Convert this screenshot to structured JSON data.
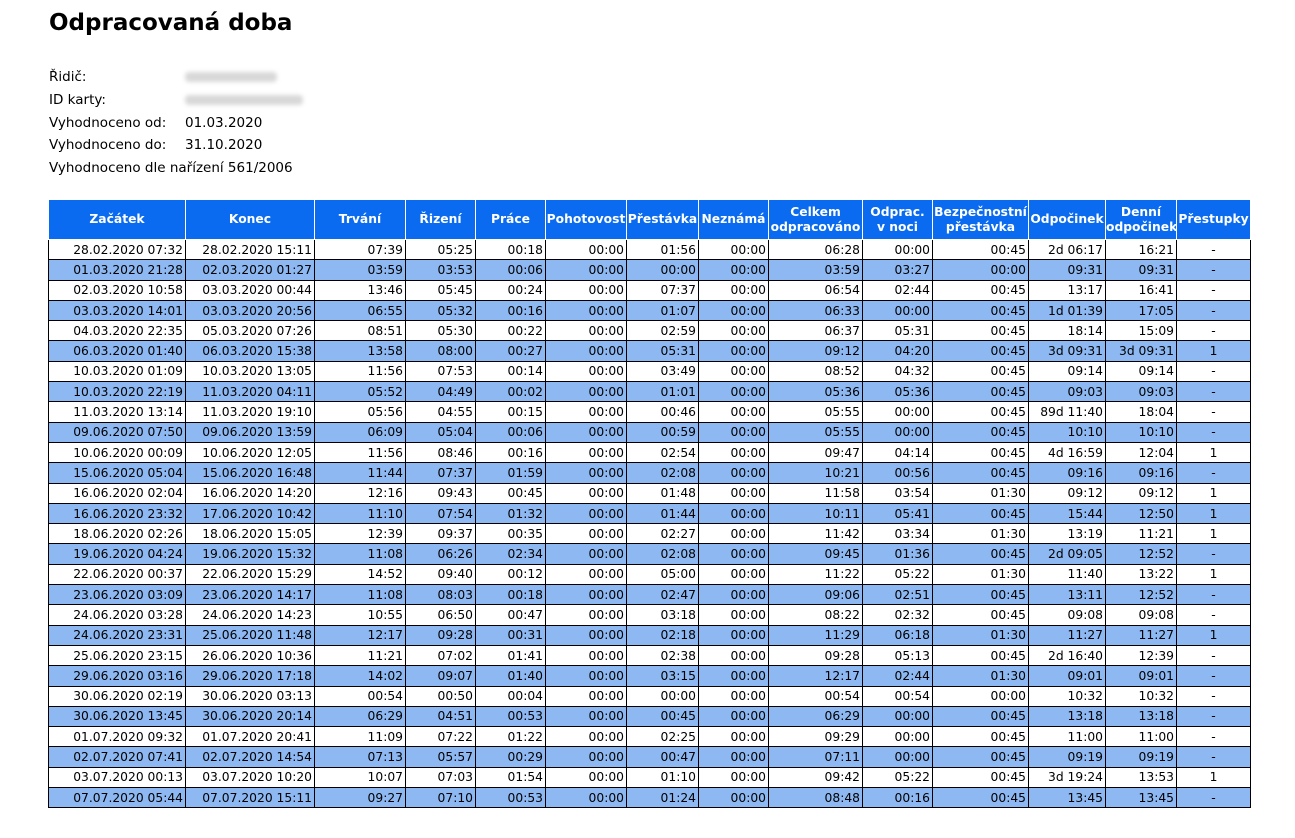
{
  "title": "Odpracovaná doba",
  "meta": [
    {
      "label": "Řidič:",
      "value": ""
    },
    {
      "label": "ID karty:",
      "value": ""
    },
    {
      "label": "Vyhodnoceno od:",
      "value": "01.03.2020"
    },
    {
      "label": "Vyhodnoceno do:",
      "value": "31.10.2020"
    }
  ],
  "regulation": "Vyhodnoceno dle nařízení 561/2006",
  "columns": [
    [
      "Začátek"
    ],
    [
      "Konec"
    ],
    [
      "Trvání"
    ],
    [
      "Řizení"
    ],
    [
      "Práce"
    ],
    [
      "Pohotovost"
    ],
    [
      "Přestávka"
    ],
    [
      "Neznámá"
    ],
    [
      "Celkem",
      "odpracováno"
    ],
    [
      "Odprac.",
      "v noci"
    ],
    [
      "Bezpečnostní",
      "přestávka"
    ],
    [
      "Odpočinek"
    ],
    [
      "Denní",
      "odpočinek"
    ],
    [
      "Přestupky"
    ]
  ],
  "rows": [
    [
      "28.02.2020 07:32",
      "28.02.2020 15:11",
      "07:39",
      "05:25",
      "00:18",
      "00:00",
      "01:56",
      "00:00",
      "06:28",
      "00:00",
      "00:45",
      "2d 06:17",
      "16:21",
      "-"
    ],
    [
      "01.03.2020 21:28",
      "02.03.2020 01:27",
      "03:59",
      "03:53",
      "00:06",
      "00:00",
      "00:00",
      "00:00",
      "03:59",
      "03:27",
      "00:00",
      "09:31",
      "09:31",
      "-"
    ],
    [
      "02.03.2020 10:58",
      "03.03.2020 00:44",
      "13:46",
      "05:45",
      "00:24",
      "00:00",
      "07:37",
      "00:00",
      "06:54",
      "02:44",
      "00:45",
      "13:17",
      "16:41",
      "-"
    ],
    [
      "03.03.2020 14:01",
      "03.03.2020 20:56",
      "06:55",
      "05:32",
      "00:16",
      "00:00",
      "01:07",
      "00:00",
      "06:33",
      "00:00",
      "00:45",
      "1d 01:39",
      "17:05",
      "-"
    ],
    [
      "04.03.2020 22:35",
      "05.03.2020 07:26",
      "08:51",
      "05:30",
      "00:22",
      "00:00",
      "02:59",
      "00:00",
      "06:37",
      "05:31",
      "00:45",
      "18:14",
      "15:09",
      "-"
    ],
    [
      "06.03.2020 01:40",
      "06.03.2020 15:38",
      "13:58",
      "08:00",
      "00:27",
      "00:00",
      "05:31",
      "00:00",
      "09:12",
      "04:20",
      "00:45",
      "3d 09:31",
      "3d 09:31",
      "1"
    ],
    [
      "10.03.2020 01:09",
      "10.03.2020 13:05",
      "11:56",
      "07:53",
      "00:14",
      "00:00",
      "03:49",
      "00:00",
      "08:52",
      "04:32",
      "00:45",
      "09:14",
      "09:14",
      "-"
    ],
    [
      "10.03.2020 22:19",
      "11.03.2020 04:11",
      "05:52",
      "04:49",
      "00:02",
      "00:00",
      "01:01",
      "00:00",
      "05:36",
      "05:36",
      "00:45",
      "09:03",
      "09:03",
      "-"
    ],
    [
      "11.03.2020 13:14",
      "11.03.2020 19:10",
      "05:56",
      "04:55",
      "00:15",
      "00:00",
      "00:46",
      "00:00",
      "05:55",
      "00:00",
      "00:45",
      "89d 11:40",
      "18:04",
      "-"
    ],
    [
      "09.06.2020 07:50",
      "09.06.2020 13:59",
      "06:09",
      "05:04",
      "00:06",
      "00:00",
      "00:59",
      "00:00",
      "05:55",
      "00:00",
      "00:45",
      "10:10",
      "10:10",
      "-"
    ],
    [
      "10.06.2020 00:09",
      "10.06.2020 12:05",
      "11:56",
      "08:46",
      "00:16",
      "00:00",
      "02:54",
      "00:00",
      "09:47",
      "04:14",
      "00:45",
      "4d 16:59",
      "12:04",
      "1"
    ],
    [
      "15.06.2020 05:04",
      "15.06.2020 16:48",
      "11:44",
      "07:37",
      "01:59",
      "00:00",
      "02:08",
      "00:00",
      "10:21",
      "00:56",
      "00:45",
      "09:16",
      "09:16",
      "-"
    ],
    [
      "16.06.2020 02:04",
      "16.06.2020 14:20",
      "12:16",
      "09:43",
      "00:45",
      "00:00",
      "01:48",
      "00:00",
      "11:58",
      "03:54",
      "01:30",
      "09:12",
      "09:12",
      "1"
    ],
    [
      "16.06.2020 23:32",
      "17.06.2020 10:42",
      "11:10",
      "07:54",
      "01:32",
      "00:00",
      "01:44",
      "00:00",
      "10:11",
      "05:41",
      "00:45",
      "15:44",
      "12:50",
      "1"
    ],
    [
      "18.06.2020 02:26",
      "18.06.2020 15:05",
      "12:39",
      "09:37",
      "00:35",
      "00:00",
      "02:27",
      "00:00",
      "11:42",
      "03:34",
      "01:30",
      "13:19",
      "11:21",
      "1"
    ],
    [
      "19.06.2020 04:24",
      "19.06.2020 15:32",
      "11:08",
      "06:26",
      "02:34",
      "00:00",
      "02:08",
      "00:00",
      "09:45",
      "01:36",
      "00:45",
      "2d 09:05",
      "12:52",
      "-"
    ],
    [
      "22.06.2020 00:37",
      "22.06.2020 15:29",
      "14:52",
      "09:40",
      "00:12",
      "00:00",
      "05:00",
      "00:00",
      "11:22",
      "05:22",
      "01:30",
      "11:40",
      "13:22",
      "1"
    ],
    [
      "23.06.2020 03:09",
      "23.06.2020 14:17",
      "11:08",
      "08:03",
      "00:18",
      "00:00",
      "02:47",
      "00:00",
      "09:06",
      "02:51",
      "00:45",
      "13:11",
      "12:52",
      "-"
    ],
    [
      "24.06.2020 03:28",
      "24.06.2020 14:23",
      "10:55",
      "06:50",
      "00:47",
      "00:00",
      "03:18",
      "00:00",
      "08:22",
      "02:32",
      "00:45",
      "09:08",
      "09:08",
      "-"
    ],
    [
      "24.06.2020 23:31",
      "25.06.2020 11:48",
      "12:17",
      "09:28",
      "00:31",
      "00:00",
      "02:18",
      "00:00",
      "11:29",
      "06:18",
      "01:30",
      "11:27",
      "11:27",
      "1"
    ],
    [
      "25.06.2020 23:15",
      "26.06.2020 10:36",
      "11:21",
      "07:02",
      "01:41",
      "00:00",
      "02:38",
      "00:00",
      "09:28",
      "05:13",
      "00:45",
      "2d 16:40",
      "12:39",
      "-"
    ],
    [
      "29.06.2020 03:16",
      "29.06.2020 17:18",
      "14:02",
      "09:07",
      "01:40",
      "00:00",
      "03:15",
      "00:00",
      "12:17",
      "02:44",
      "01:30",
      "09:01",
      "09:01",
      "-"
    ],
    [
      "30.06.2020 02:19",
      "30.06.2020 03:13",
      "00:54",
      "00:50",
      "00:04",
      "00:00",
      "00:00",
      "00:00",
      "00:54",
      "00:54",
      "00:00",
      "10:32",
      "10:32",
      "-"
    ],
    [
      "30.06.2020 13:45",
      "30.06.2020 20:14",
      "06:29",
      "04:51",
      "00:53",
      "00:00",
      "00:45",
      "00:00",
      "06:29",
      "00:00",
      "00:45",
      "13:18",
      "13:18",
      "-"
    ],
    [
      "01.07.2020 09:32",
      "01.07.2020 20:41",
      "11:09",
      "07:22",
      "01:22",
      "00:00",
      "02:25",
      "00:00",
      "09:29",
      "00:00",
      "00:45",
      "11:00",
      "11:00",
      "-"
    ],
    [
      "02.07.2020 07:41",
      "02.07.2020 14:54",
      "07:13",
      "05:57",
      "00:29",
      "00:00",
      "00:47",
      "00:00",
      "07:11",
      "00:00",
      "00:45",
      "09:19",
      "09:19",
      "-"
    ],
    [
      "03.07.2020 00:13",
      "03.07.2020 10:20",
      "10:07",
      "07:03",
      "01:54",
      "00:00",
      "01:10",
      "00:00",
      "09:42",
      "05:22",
      "00:45",
      "3d 19:24",
      "13:53",
      "1"
    ],
    [
      "07.07.2020 05:44",
      "07.07.2020 15:11",
      "09:27",
      "07:10",
      "00:53",
      "00:00",
      "01:24",
      "00:00",
      "08:48",
      "00:16",
      "00:45",
      "13:45",
      "13:45",
      "-"
    ]
  ],
  "colors": {
    "header": "#0a6bf0",
    "row_alt": "#8db8f2",
    "row": "#ffffff"
  }
}
